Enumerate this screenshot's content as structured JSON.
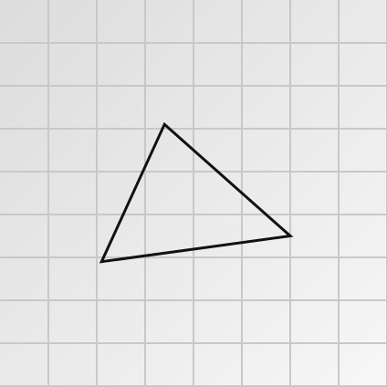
{
  "background": {
    "gradient_start": "#dcdcdc",
    "gradient_end": "#f7f7f7"
  },
  "grid": {
    "visible": true,
    "line_color": "#c8c8c8",
    "columns": 8,
    "rows": 9
  },
  "shape": {
    "type": "triangle",
    "vertices": [
      {
        "name": "top",
        "x": 3.4,
        "y": 2.9
      },
      {
        "name": "right",
        "x": 6.0,
        "y": 5.5
      },
      {
        "name": "left",
        "x": 2.1,
        "y": 6.1
      }
    ],
    "stroke_color": "#111111",
    "fill": "none"
  }
}
